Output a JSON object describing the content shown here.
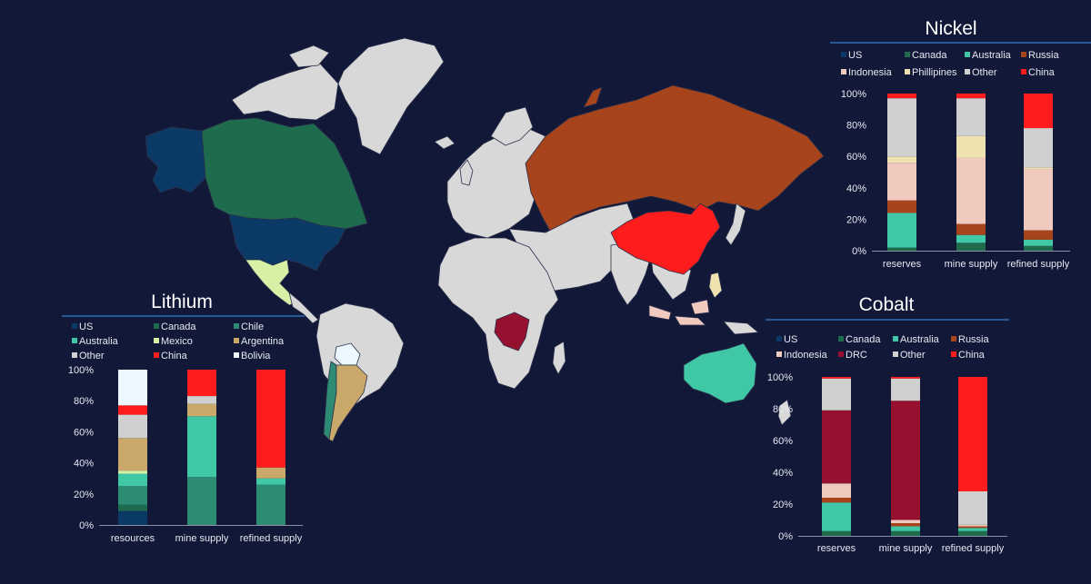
{
  "colors": {
    "background": "#121838",
    "land": "#d8d8d8",
    "border": "#2a2f4a",
    "rule": "#2f6fb5",
    "US": "#0b3a66",
    "Canada": "#1f6b4d",
    "Chile": "#2e8b73",
    "Australia": "#3fc7a6",
    "Mexico": "#d6f0a6",
    "Argentina": "#c9a86a",
    "Russia": "#a8441b",
    "Indonesia": "#f0c9bf",
    "Phillipines": "#efe1b0",
    "DRC": "#96102f",
    "Other": "#d0d0d0",
    "China": "#ff1c1c",
    "Bolivia": "#ecf8ff"
  },
  "charts": {
    "lithium": {
      "title": "Lithium"
    },
    "nickel": {
      "title": "Nickel"
    },
    "cobalt": {
      "title": "Cobalt"
    }
  },
  "chart_data": [
    {
      "id": "nickel",
      "type": "bar",
      "stacked": true,
      "title": "Nickel",
      "categories": [
        "reserves",
        "mine supply",
        "refined supply"
      ],
      "ylim": [
        0,
        100
      ],
      "yticks": [
        "0%",
        "20%",
        "40%",
        "60%",
        "80%",
        "100%"
      ],
      "legend": [
        [
          "US",
          "Canada",
          "Australia",
          "Russia"
        ],
        [
          "Indonesia",
          "Phillipines",
          "Other",
          "China"
        ]
      ],
      "series": [
        {
          "name": "US",
          "values": [
            0,
            0,
            0
          ]
        },
        {
          "name": "Canada",
          "values": [
            2,
            5,
            3
          ]
        },
        {
          "name": "Australia",
          "values": [
            22,
            5,
            4
          ]
        },
        {
          "name": "Russia",
          "values": [
            8,
            7,
            6
          ]
        },
        {
          "name": "Indonesia",
          "values": [
            24,
            42,
            39
          ]
        },
        {
          "name": "Phillipines",
          "values": [
            4,
            14,
            1
          ]
        },
        {
          "name": "Other",
          "values": [
            37,
            24,
            25
          ]
        },
        {
          "name": "China",
          "values": [
            3,
            3,
            22
          ]
        }
      ]
    },
    {
      "id": "lithium",
      "type": "bar",
      "stacked": true,
      "title": "Lithium",
      "categories": [
        "resources",
        "mine supply",
        "refined supply"
      ],
      "ylim": [
        0,
        100
      ],
      "yticks": [
        "0%",
        "20%",
        "40%",
        "60%",
        "80%",
        "100%"
      ],
      "legend": [
        [
          "US",
          "Canada",
          "Chile"
        ],
        [
          "Australia",
          "Mexico",
          "Argentina"
        ],
        [
          "Other",
          "China",
          "Bolivia"
        ]
      ],
      "series": [
        {
          "name": "US",
          "values": [
            9,
            0,
            0
          ]
        },
        {
          "name": "Canada",
          "values": [
            4,
            0,
            0
          ]
        },
        {
          "name": "Chile",
          "values": [
            12,
            31,
            26
          ]
        },
        {
          "name": "Australia",
          "values": [
            8,
            39,
            4
          ]
        },
        {
          "name": "Mexico",
          "values": [
            2,
            0,
            0
          ]
        },
        {
          "name": "Argentina",
          "values": [
            21,
            8,
            7
          ]
        },
        {
          "name": "Other",
          "values": [
            15,
            5,
            0
          ]
        },
        {
          "name": "China",
          "values": [
            6,
            17,
            63
          ]
        },
        {
          "name": "Bolivia",
          "values": [
            23,
            0,
            0
          ]
        }
      ]
    },
    {
      "id": "cobalt",
      "type": "bar",
      "stacked": true,
      "title": "Cobalt",
      "categories": [
        "reserves",
        "mine supply",
        "refined supply"
      ],
      "ylim": [
        0,
        100
      ],
      "yticks": [
        "0%",
        "20%",
        "40%",
        "60%",
        "80%",
        "100%"
      ],
      "legend": [
        [
          "US",
          "Canada",
          "Australia",
          "Russia"
        ],
        [
          "Indonesia",
          "DRC",
          "Other",
          "China"
        ]
      ],
      "series": [
        {
          "name": "US",
          "values": [
            0,
            0,
            0
          ]
        },
        {
          "name": "Canada",
          "values": [
            3,
            3,
            3
          ]
        },
        {
          "name": "Australia",
          "values": [
            18,
            3,
            2
          ]
        },
        {
          "name": "Russia",
          "values": [
            3,
            2,
            1
          ]
        },
        {
          "name": "Indonesia",
          "values": [
            9,
            2,
            1
          ]
        },
        {
          "name": "DRC",
          "values": [
            46,
            75,
            0
          ]
        },
        {
          "name": "Other",
          "values": [
            20,
            14,
            21
          ]
        },
        {
          "name": "China",
          "values": [
            1,
            1,
            72
          ]
        }
      ]
    }
  ]
}
